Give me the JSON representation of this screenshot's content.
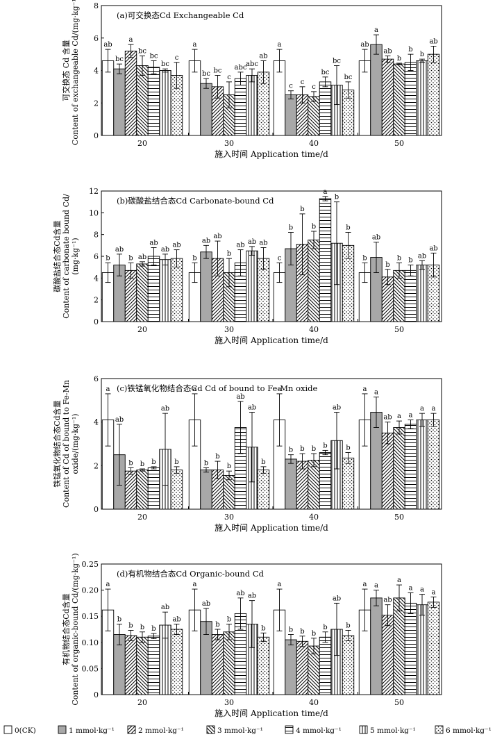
{
  "figure": {
    "categories": [
      "20",
      "30",
      "40",
      "50"
    ],
    "legend": [
      "0(CK)",
      "1 mmol·kg⁻¹",
      "2 mmol·kg⁻¹",
      "3 mmol·kg⁻¹",
      "4 mmol·kg⁻¹",
      "5 mmol·kg⁻¹",
      "6 mmol·kg⁻¹"
    ],
    "legend_placement": "bottom",
    "patterns": [
      "white",
      "gray",
      "diag-right",
      "diag-left",
      "horizontal",
      "vertical",
      "dots"
    ],
    "colors": {
      "gray_fill": "#a8a8a8",
      "stroke": "#000000",
      "background": "#ffffff"
    }
  },
  "chart_data": [
    {
      "type": "bar",
      "title": "(a)可交换态Cd  Exchangeable Cd",
      "xlabel": "施入时间 Application time/d",
      "ylabel_lines": [
        "可交换态 Cd 含量",
        "Content of exchangeable Cd/(mg·kg⁻¹)"
      ],
      "ylim": [
        0,
        8
      ],
      "yticks": [
        "0",
        "2",
        "4",
        "6",
        "8"
      ],
      "ytick_values": [
        0,
        2,
        4,
        6,
        8
      ],
      "categories": [
        "20",
        "30",
        "40",
        "50"
      ],
      "series": [
        {
          "name": "0(CK)",
          "values": [
            4.6,
            4.6,
            4.6,
            4.6
          ],
          "errors": [
            0.7,
            0.7,
            0.7,
            0.7
          ],
          "labels": [
            "ab",
            "a",
            "a",
            "ab"
          ]
        },
        {
          "name": "1 mmol·kg⁻¹",
          "values": [
            4.1,
            3.2,
            2.5,
            5.6
          ],
          "errors": [
            0.3,
            0.3,
            0.25,
            0.6
          ],
          "labels": [
            "bc",
            "bc",
            "c",
            "a"
          ]
        },
        {
          "name": "2 mmol·kg⁻¹",
          "values": [
            5.2,
            3.0,
            2.5,
            4.7
          ],
          "errors": [
            0.4,
            0.7,
            0.5,
            0.2
          ],
          "labels": [
            "a",
            "bc",
            "c",
            "ab"
          ]
        },
        {
          "name": "3 mmol·kg⁻¹",
          "values": [
            4.3,
            2.5,
            2.4,
            4.4
          ],
          "errors": [
            0.6,
            0.8,
            0.3,
            0.05
          ],
          "labels": [
            "bc",
            "c",
            "c",
            "b"
          ]
        },
        {
          "name": "4 mmol·kg⁻¹",
          "values": [
            4.2,
            3.5,
            3.3,
            4.5
          ],
          "errors": [
            0.4,
            0.4,
            0.3,
            0.5
          ],
          "labels": [
            "bc",
            "abc",
            "bc",
            "b"
          ]
        },
        {
          "name": "5 mmol·kg⁻¹",
          "values": [
            4.0,
            3.7,
            3.1,
            4.6
          ],
          "errors": [
            0.1,
            0.4,
            1.2,
            0.1
          ],
          "labels": [
            "bc",
            "abc",
            "bc",
            "b"
          ]
        },
        {
          "name": "6 mmol·kg⁻¹",
          "values": [
            3.7,
            3.9,
            2.8,
            5.0
          ],
          "errors": [
            0.8,
            0.7,
            0.5,
            0.5
          ],
          "labels": [
            "c",
            "ab",
            "bc",
            "ab"
          ]
        }
      ]
    },
    {
      "type": "bar",
      "title": "(b)碳酸盐结合态Cd  Carbonate-bound Cd",
      "xlabel": "施入时间 Application time/d",
      "ylabel_lines": [
        "碳酸盐结合态Cd含量",
        "Content of carbonate bound Cd/",
        "(mg·kg⁻¹)"
      ],
      "ylim": [
        0,
        12
      ],
      "yticks": [
        "0",
        "2",
        "4",
        "6",
        "8",
        "10",
        "12"
      ],
      "ytick_values": [
        0,
        2,
        4,
        6,
        8,
        10,
        12
      ],
      "categories": [
        "20",
        "30",
        "40",
        "50"
      ],
      "series": [
        {
          "name": "0(CK)",
          "values": [
            4.5,
            4.5,
            4.5,
            4.5
          ],
          "errors": [
            0.9,
            0.9,
            0.9,
            0.9
          ],
          "labels": [
            "b",
            "b",
            "c",
            "b"
          ]
        },
        {
          "name": "1 mmol·kg⁻¹",
          "values": [
            5.2,
            6.4,
            6.7,
            5.9
          ],
          "errors": [
            1.0,
            0.6,
            1.5,
            1.4
          ],
          "labels": [
            "ab",
            "ab",
            "b",
            "ab"
          ]
        },
        {
          "name": "2 mmol·kg⁻¹",
          "values": [
            4.7,
            5.8,
            7.1,
            4.1
          ],
          "errors": [
            0.7,
            1.6,
            2.8,
            0.7
          ],
          "labels": [
            "b",
            "ab",
            "b",
            "b"
          ]
        },
        {
          "name": "3 mmol·kg⁻¹",
          "values": [
            5.3,
            4.5,
            7.5,
            4.7
          ],
          "errors": [
            0.2,
            1.3,
            0.8,
            0.7
          ],
          "labels": [
            "ab",
            "b",
            "b",
            "b"
          ]
        },
        {
          "name": "4 mmol·kg⁻¹",
          "values": [
            6.0,
            5.4,
            11.3,
            4.7
          ],
          "errors": [
            0.8,
            1.2,
            0.2,
            0.5
          ],
          "labels": [
            "ab",
            "ab",
            "a",
            "b"
          ]
        },
        {
          "name": "5 mmol·kg⁻¹",
          "values": [
            5.7,
            6.5,
            7.2,
            5.2
          ],
          "errors": [
            0.5,
            0.4,
            3.8,
            0.4
          ],
          "labels": [
            "ab",
            "ab",
            "b",
            "ab"
          ]
        },
        {
          "name": "6 mmol·kg⁻¹",
          "values": [
            5.8,
            5.8,
            7.0,
            5.2
          ],
          "errors": [
            0.8,
            1.0,
            1.2,
            1.1
          ],
          "labels": [
            "ab",
            "ab",
            "b",
            "ab"
          ]
        }
      ]
    },
    {
      "type": "bar",
      "title": "(c)铁锰氧化物结合态Cd  Cd of bound to Fe-Mn oxide",
      "xlabel": "施入时间 Application time/d",
      "ylabel_lines": [
        "铁锰氧化物结合态Cd含量",
        "Content of Cd of bound to Fe-Mn",
        "oxide/(mg·kg⁻¹)"
      ],
      "ylim": [
        0,
        6
      ],
      "yticks": [
        "0",
        "2",
        "4",
        "6"
      ],
      "ytick_values": [
        0,
        2,
        4,
        6
      ],
      "categories": [
        "20",
        "30",
        "40",
        "50"
      ],
      "series": [
        {
          "name": "0(CK)",
          "values": [
            4.1,
            4.1,
            4.1,
            4.1
          ],
          "errors": [
            1.2,
            1.2,
            1.2,
            1.2
          ],
          "labels": [
            "a",
            "a",
            "a",
            "a"
          ]
        },
        {
          "name": "1 mmol·kg⁻¹",
          "values": [
            2.5,
            1.8,
            2.3,
            4.45
          ],
          "errors": [
            1.4,
            0.1,
            0.2,
            0.7
          ],
          "labels": [
            "ab",
            "b",
            "b",
            "a"
          ]
        },
        {
          "name": "2 mmol·kg⁻¹",
          "values": [
            1.75,
            1.8,
            2.2,
            3.5
          ],
          "errors": [
            0.15,
            0.4,
            0.35,
            0.5
          ],
          "labels": [
            "b",
            "b",
            "b",
            "ab"
          ]
        },
        {
          "name": "3 mmol·kg⁻¹",
          "values": [
            1.8,
            1.55,
            2.25,
            3.75
          ],
          "errors": [
            0.05,
            0.2,
            0.3,
            0.3
          ],
          "labels": [
            "b",
            "b",
            "b",
            "a"
          ]
        },
        {
          "name": "4 mmol·kg⁻¹",
          "values": [
            1.9,
            3.75,
            2.6,
            3.9
          ],
          "errors": [
            0.05,
            1.2,
            0.1,
            0.2
          ],
          "labels": [
            "b",
            "ab",
            "b",
            "a"
          ]
        },
        {
          "name": "5 mmol·kg⁻¹",
          "values": [
            2.75,
            2.85,
            3.15,
            4.1
          ],
          "errors": [
            1.65,
            1.6,
            1.3,
            0.3
          ],
          "labels": [
            "ab",
            "ab",
            "ab",
            "a"
          ]
        },
        {
          "name": "6 mmol·kg⁻¹",
          "values": [
            1.8,
            1.8,
            2.35,
            4.1
          ],
          "errors": [
            0.15,
            0.15,
            0.25,
            0.3
          ],
          "labels": [
            "b",
            "b",
            "b",
            "a"
          ]
        }
      ]
    },
    {
      "type": "bar",
      "title": "(d)有机物结合态Cd  Organic-bound Cd",
      "xlabel": "施入时间 Application time/d",
      "ylabel_lines": [
        "有机物结合态Cd含量",
        "Content of organic-bound Cd/(mg·kg⁻¹)"
      ],
      "ylim": [
        0,
        0.25
      ],
      "yticks": [
        "0",
        "0.05",
        "0.10",
        "0.15",
        "0.20",
        "0.25"
      ],
      "ytick_values": [
        0,
        0.05,
        0.1,
        0.15,
        0.2,
        0.25
      ],
      "categories": [
        "20",
        "30",
        "40",
        "50"
      ],
      "series": [
        {
          "name": "0(CK)",
          "values": [
            0.162,
            0.162,
            0.162,
            0.162
          ],
          "errors": [
            0.04,
            0.04,
            0.04,
            0.04
          ],
          "labels": [
            "a",
            "a",
            "a",
            "a"
          ]
        },
        {
          "name": "1 mmol·kg⁻¹",
          "values": [
            0.115,
            0.14,
            0.105,
            0.185
          ],
          "errors": [
            0.02,
            0.025,
            0.01,
            0.015
          ],
          "labels": [
            "b",
            "ab",
            "b",
            "a"
          ]
        },
        {
          "name": "2 mmol·kg⁻¹",
          "values": [
            0.113,
            0.115,
            0.102,
            0.152
          ],
          "errors": [
            0.01,
            0.01,
            0.01,
            0.02
          ],
          "labels": [
            "b",
            "b",
            "b",
            "ab"
          ]
        },
        {
          "name": "3 mmol·kg⁻¹",
          "values": [
            0.11,
            0.12,
            0.093,
            0.185
          ],
          "errors": [
            0.01,
            0.015,
            0.015,
            0.025
          ],
          "labels": [
            "b",
            "b",
            "b",
            "a"
          ]
        },
        {
          "name": "4 mmol·kg⁻¹",
          "values": [
            0.112,
            0.155,
            0.11,
            0.175
          ],
          "errors": [
            0.005,
            0.03,
            0.01,
            0.02
          ],
          "labels": [
            "b",
            "ab",
            "b",
            "a"
          ]
        },
        {
          "name": "5 mmol·kg⁻¹",
          "values": [
            0.133,
            0.135,
            0.125,
            0.172
          ],
          "errors": [
            0.025,
            0.045,
            0.05,
            0.02
          ],
          "labels": [
            "ab",
            "ab",
            "ab",
            "a"
          ]
        },
        {
          "name": "6 mmol·kg⁻¹",
          "values": [
            0.125,
            0.11,
            0.113,
            0.177
          ],
          "errors": [
            0.01,
            0.008,
            0.01,
            0.01
          ],
          "labels": [
            "ab",
            "b",
            "b",
            "a"
          ]
        }
      ]
    }
  ]
}
